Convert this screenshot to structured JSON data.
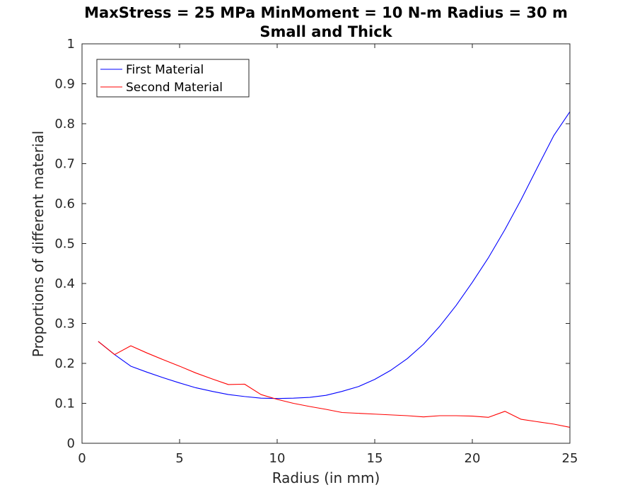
{
  "chart_data": {
    "type": "line",
    "title": "MaxStress = 25 MPa MinMoment = 10 N-m Radius = 30 m",
    "subtitle": "Small and Thick",
    "xlabel": "Radius (in mm)",
    "ylabel": "Proportions of different material",
    "xlim": [
      0,
      25
    ],
    "ylim": [
      0,
      1
    ],
    "x_ticks": [
      "0",
      "5",
      "10",
      "15",
      "20",
      "25"
    ],
    "y_ticks": [
      "0",
      "0.1",
      "0.2",
      "0.3",
      "0.4",
      "0.5",
      "0.6",
      "0.7",
      "0.8",
      "0.9",
      "1"
    ],
    "grid": false,
    "legend_position": "top-left",
    "series": [
      {
        "name": "First Material",
        "color": "#0000ff",
        "x": [
          0.83,
          1.67,
          2.5,
          3.33,
          4.17,
          5.0,
          5.83,
          6.67,
          7.5,
          8.33,
          9.17,
          10.0,
          10.83,
          11.67,
          12.5,
          13.33,
          14.17,
          15.0,
          15.83,
          16.67,
          17.5,
          18.33,
          19.17,
          20.0,
          20.83,
          21.67,
          22.5,
          23.33,
          24.17,
          25.0
        ],
        "y": [
          0.255,
          0.222,
          0.193,
          0.178,
          0.164,
          0.151,
          0.139,
          0.13,
          0.122,
          0.117,
          0.113,
          0.112,
          0.113,
          0.115,
          0.12,
          0.13,
          0.142,
          0.16,
          0.183,
          0.212,
          0.248,
          0.293,
          0.345,
          0.403,
          0.465,
          0.535,
          0.61,
          0.69,
          0.77,
          0.83
        ]
      },
      {
        "name": "Second Material",
        "color": "#ff0000",
        "x": [
          0.83,
          1.67,
          2.5,
          3.33,
          4.17,
          5.0,
          5.83,
          6.67,
          7.5,
          8.33,
          9.17,
          10.0,
          10.83,
          11.67,
          12.5,
          13.33,
          14.17,
          15.0,
          15.83,
          16.67,
          17.5,
          18.33,
          19.17,
          20.0,
          20.83,
          21.67,
          22.5,
          23.33,
          24.17,
          25.0
        ],
        "y": [
          0.255,
          0.222,
          0.244,
          0.226,
          0.209,
          0.193,
          0.176,
          0.161,
          0.147,
          0.148,
          0.122,
          0.11,
          0.1,
          0.092,
          0.085,
          0.077,
          0.075,
          0.073,
          0.071,
          0.069,
          0.066,
          0.069,
          0.069,
          0.068,
          0.065,
          0.08,
          0.06,
          0.054,
          0.048,
          0.04
        ]
      }
    ]
  }
}
